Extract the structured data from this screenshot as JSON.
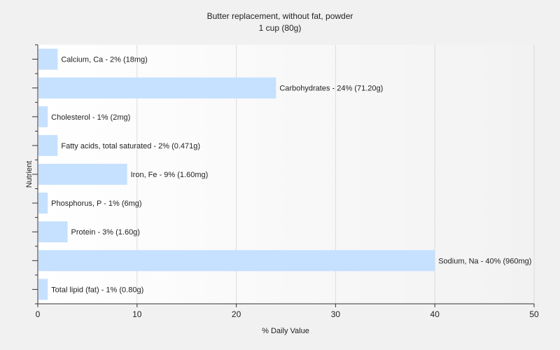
{
  "chart_data": {
    "type": "bar",
    "orientation": "horizontal",
    "title": "Butter replacement, without fat, powder",
    "subtitle": "1 cup (80g)",
    "xlabel": "% Daily Value",
    "ylabel": "Nutrient",
    "xlim": [
      0,
      50
    ],
    "xticks": [
      0,
      10,
      20,
      30,
      40,
      50
    ],
    "grid": "vertical",
    "legend": "none",
    "bar_color": "#c6e0ff",
    "categories": [
      "Calcium, Ca",
      "Carbohydrates",
      "Cholesterol",
      "Fatty acids, total saturated",
      "Iron, Fe",
      "Phosphorus, P",
      "Protein",
      "Sodium, Na",
      "Total lipid (fat)"
    ],
    "values": [
      2,
      24,
      1,
      2,
      9,
      1,
      3,
      40,
      1
    ],
    "data_labels": [
      "Calcium, Ca - 2% (18mg)",
      "Carbohydrates - 24% (71.20g)",
      "Cholesterol - 1% (2mg)",
      "Fatty acids, total saturated - 2% (0.471g)",
      "Iron, Fe - 9% (1.60mg)",
      "Phosphorus, P - 1% (6mg)",
      "Protein - 3% (1.60g)",
      "Sodium, Na - 40% (960mg)",
      "Total lipid (fat) - 1% (0.80g)"
    ]
  }
}
